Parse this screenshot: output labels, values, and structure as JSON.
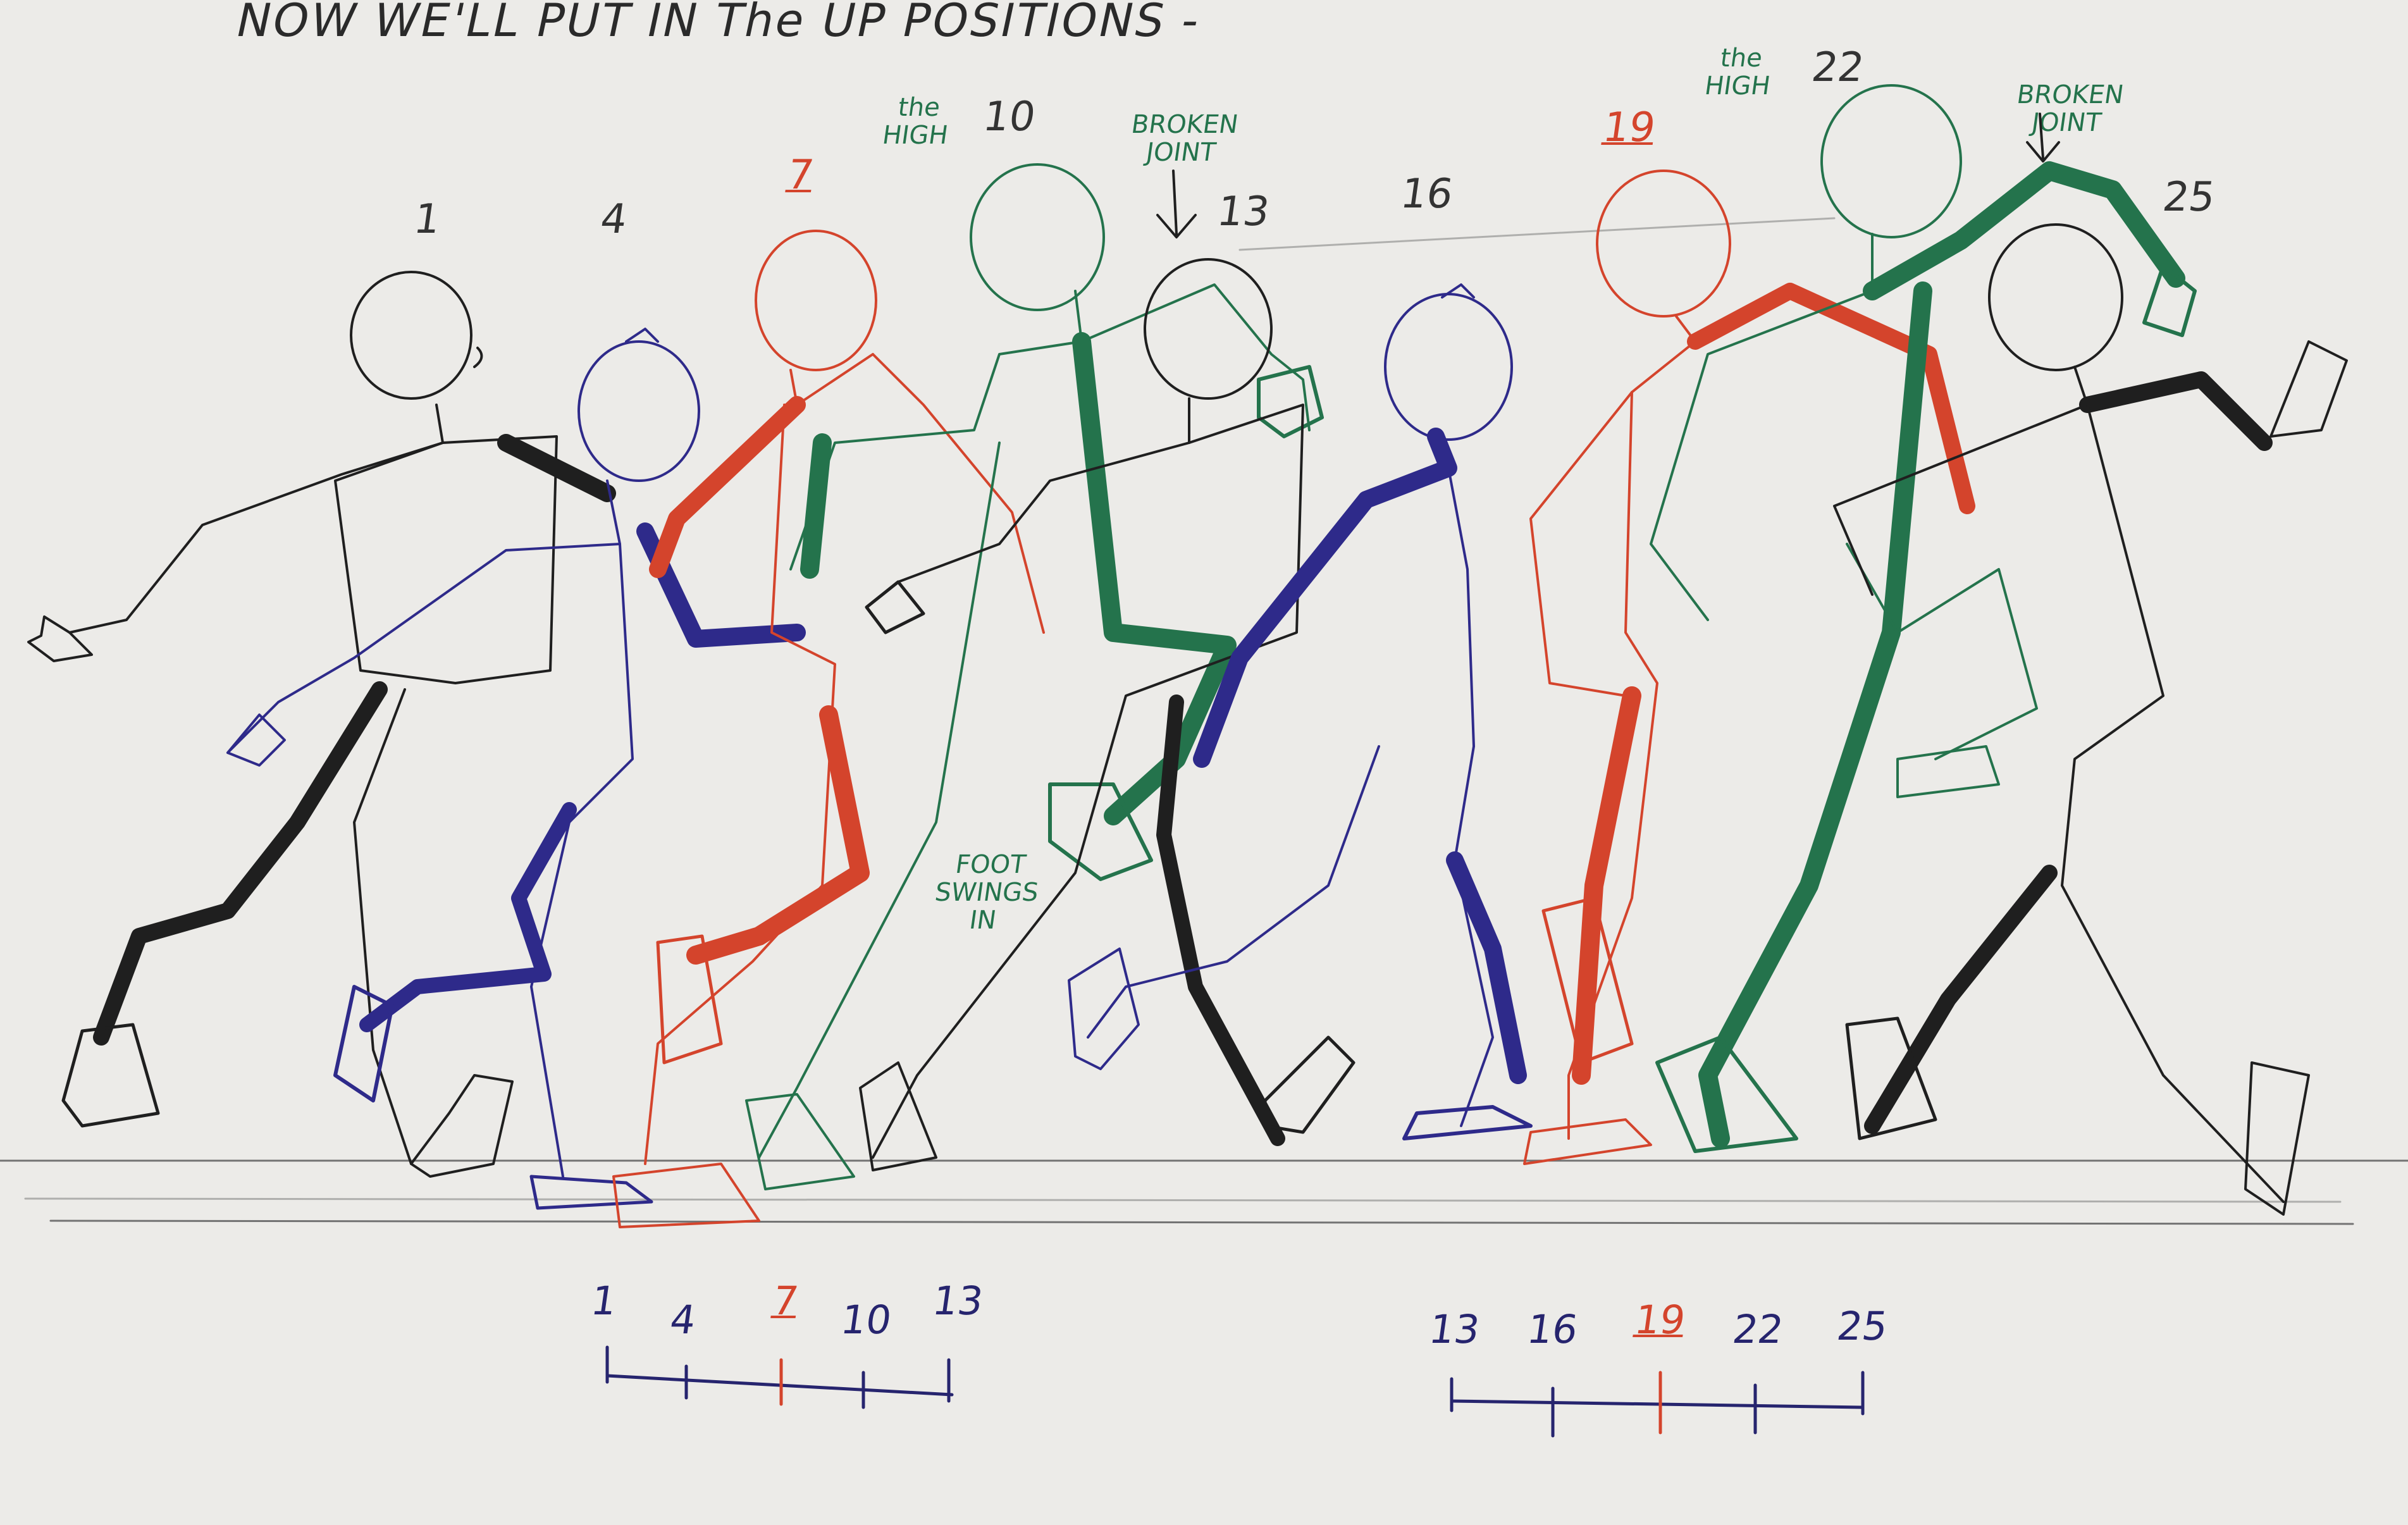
{
  "title": "NOW WE'LL PUT IN The UP POSITIONS -",
  "frames": [
    {
      "label": "1",
      "color": "#2b2b2b",
      "accent": false
    },
    {
      "label": "4",
      "color": "#2b2b2b",
      "accent": false
    },
    {
      "label": "7",
      "color": "#d4442c",
      "accent": true
    },
    {
      "label": "10",
      "color": "#2b2b2b",
      "accent": false
    },
    {
      "label": "13",
      "color": "#2b2b2b",
      "accent": false
    },
    {
      "label": "16",
      "color": "#2b2b2b",
      "accent": false
    },
    {
      "label": "19",
      "color": "#d4442c",
      "accent": true
    },
    {
      "label": "22",
      "color": "#2b2b2b",
      "accent": false
    },
    {
      "label": "25",
      "color": "#2b2b2b",
      "accent": false
    }
  ],
  "annotations": {
    "high_1": "the HIGH",
    "broken_joint_1": "BROKEN JOINT",
    "high_2": "the HIGH",
    "broken_joint_2": "BROKEN JOINT",
    "foot_swings": "FOOT SWINGS IN"
  },
  "timing_scales": [
    {
      "labels": [
        "1",
        "4",
        "7",
        "10",
        "13"
      ],
      "accent_index": 2
    },
    {
      "labels": [
        "13",
        "16",
        "19",
        "22",
        "25"
      ],
      "accent_index": 2
    }
  ],
  "colors": {
    "paper": "#ecebe8",
    "black_pencil": "#1f1f1f",
    "blue_pen": "#2e2a8a",
    "red_pencil": "#d4442c",
    "green_pencil": "#24734c",
    "ground_line": "#555555"
  }
}
